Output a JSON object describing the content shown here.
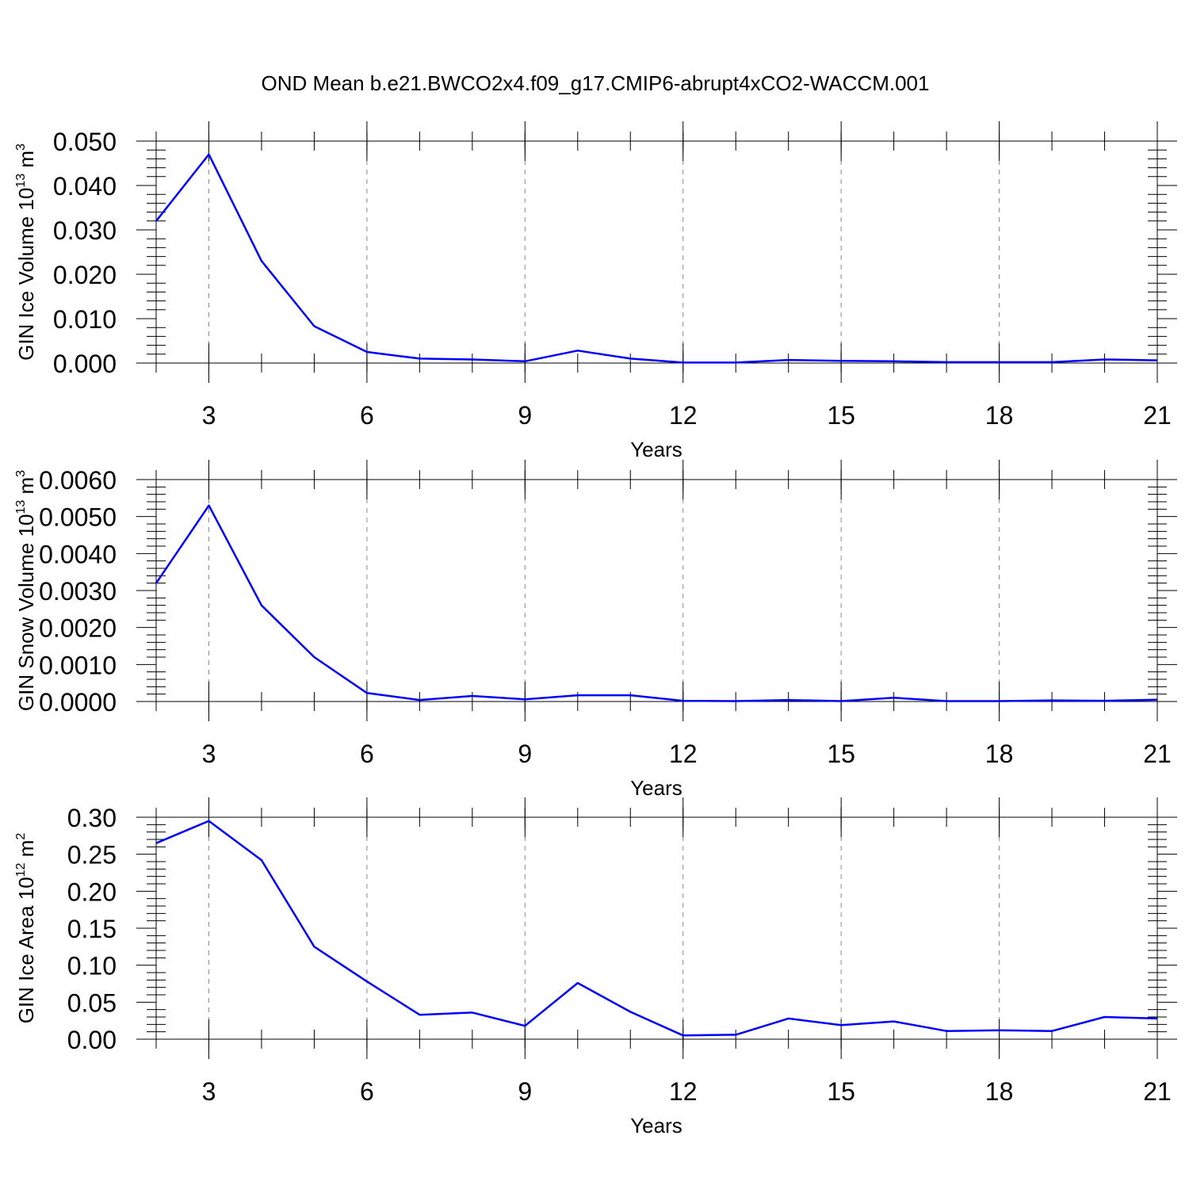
{
  "title": "OND Mean b.e21.BWCO2x4.f09_g17.CMIP6-abrupt4xCO2-WACCM.001",
  "line_color": "#0000ff",
  "chart_data": [
    {
      "type": "line",
      "xlabel": "Years",
      "ylabel": "GIN Ice Volume 10",
      "ylabel_exp": "13",
      "ylabel_unit": " m",
      "ylabel_unit_exp": "3",
      "xlim": [
        2,
        21
      ],
      "ylim": [
        0,
        0.05
      ],
      "yticks": [
        "0.000",
        "0.010",
        "0.020",
        "0.030",
        "0.040",
        "0.050"
      ],
      "xticks": [
        "3",
        "6",
        "9",
        "12",
        "15",
        "18",
        "21"
      ],
      "x": [
        2,
        3,
        4,
        5,
        6,
        7,
        8,
        9,
        10,
        11,
        12,
        13,
        14,
        15,
        16,
        17,
        18,
        19,
        20,
        21
      ],
      "series": [
        {
          "values": [
            0.032,
            0.047,
            0.023,
            0.0083,
            0.0025,
            0.001,
            0.0008,
            0.0004,
            0.0028,
            0.001,
            0.0001,
            0.0001,
            0.0007,
            0.0005,
            0.0004,
            0.0002,
            0.0002,
            0.0002,
            0.0008,
            0.0006
          ]
        }
      ]
    },
    {
      "type": "line",
      "xlabel": "Years",
      "ylabel": "GIN Snow Volume 10",
      "ylabel_exp": "13",
      "ylabel_unit": " m",
      "ylabel_unit_exp": "3",
      "xlim": [
        2,
        21
      ],
      "ylim": [
        0,
        0.006
      ],
      "yticks": [
        "0.0000",
        "0.0010",
        "0.0020",
        "0.0030",
        "0.0040",
        "0.0050",
        "0.0060"
      ],
      "xticks": [
        "3",
        "6",
        "9",
        "12",
        "15",
        "18",
        "21"
      ],
      "x": [
        2,
        3,
        4,
        5,
        6,
        7,
        8,
        9,
        10,
        11,
        12,
        13,
        14,
        15,
        16,
        17,
        18,
        19,
        20,
        21
      ],
      "series": [
        {
          "values": [
            0.0032,
            0.0053,
            0.0026,
            0.0012,
            0.00023,
            4e-05,
            0.00015,
            6e-05,
            0.00017,
            0.00017,
            2e-05,
            1e-05,
            4e-05,
            1e-05,
            0.0001,
            1e-05,
            1e-05,
            3e-05,
            2e-05,
            5e-05
          ]
        }
      ]
    },
    {
      "type": "line",
      "xlabel": "Years",
      "ylabel": "GIN Ice Area 10",
      "ylabel_exp": "12",
      "ylabel_unit": " m",
      "ylabel_unit_exp": "2",
      "xlim": [
        2,
        21
      ],
      "ylim": [
        0,
        0.3
      ],
      "yticks": [
        "0.00",
        "0.05",
        "0.10",
        "0.15",
        "0.20",
        "0.25",
        "0.30"
      ],
      "xticks": [
        "3",
        "6",
        "9",
        "12",
        "15",
        "18",
        "21"
      ],
      "x": [
        2,
        3,
        4,
        5,
        6,
        7,
        8,
        9,
        10,
        11,
        12,
        13,
        14,
        15,
        16,
        17,
        18,
        19,
        20,
        21
      ],
      "series": [
        {
          "values": [
            0.265,
            0.295,
            0.242,
            0.125,
            0.078,
            0.033,
            0.036,
            0.018,
            0.076,
            0.037,
            0.005,
            0.006,
            0.028,
            0.019,
            0.024,
            0.011,
            0.012,
            0.011,
            0.03,
            0.028
          ]
        }
      ]
    }
  ]
}
